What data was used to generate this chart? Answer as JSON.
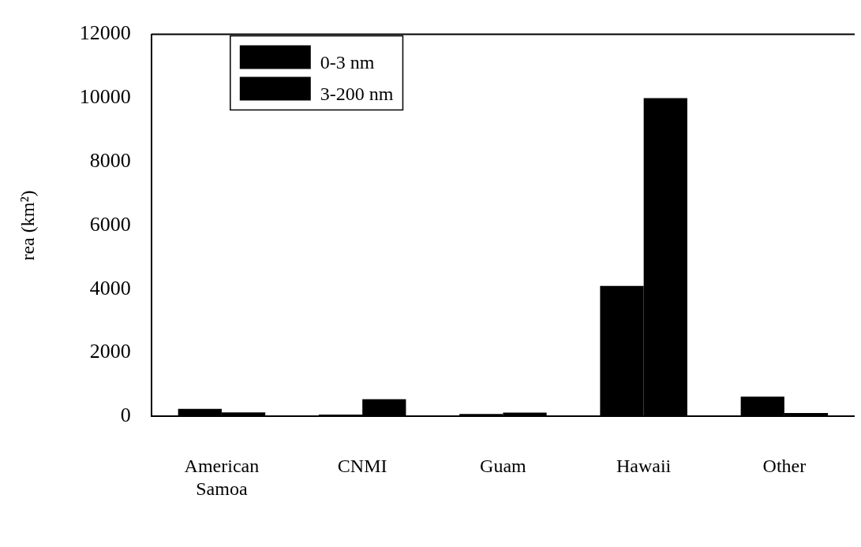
{
  "chart_data": {
    "type": "bar",
    "ylabel": "rea (km²)",
    "categories": [
      "American Samoa",
      "CNMI",
      "Guam",
      "Hawaii",
      "Other"
    ],
    "series": [
      {
        "name": "0-3 nm",
        "color": "#000000",
        "values": [
          240,
          60,
          80,
          4100,
          620
        ]
      },
      {
        "name": "3-200 nm",
        "color": "#000000",
        "values": [
          130,
          540,
          120,
          10000,
          110
        ]
      }
    ],
    "ylim": [
      0,
      12000
    ],
    "yticks": [
      0,
      2000,
      4000,
      6000,
      8000,
      10000,
      12000
    ],
    "grid": false,
    "legend": "top left"
  }
}
